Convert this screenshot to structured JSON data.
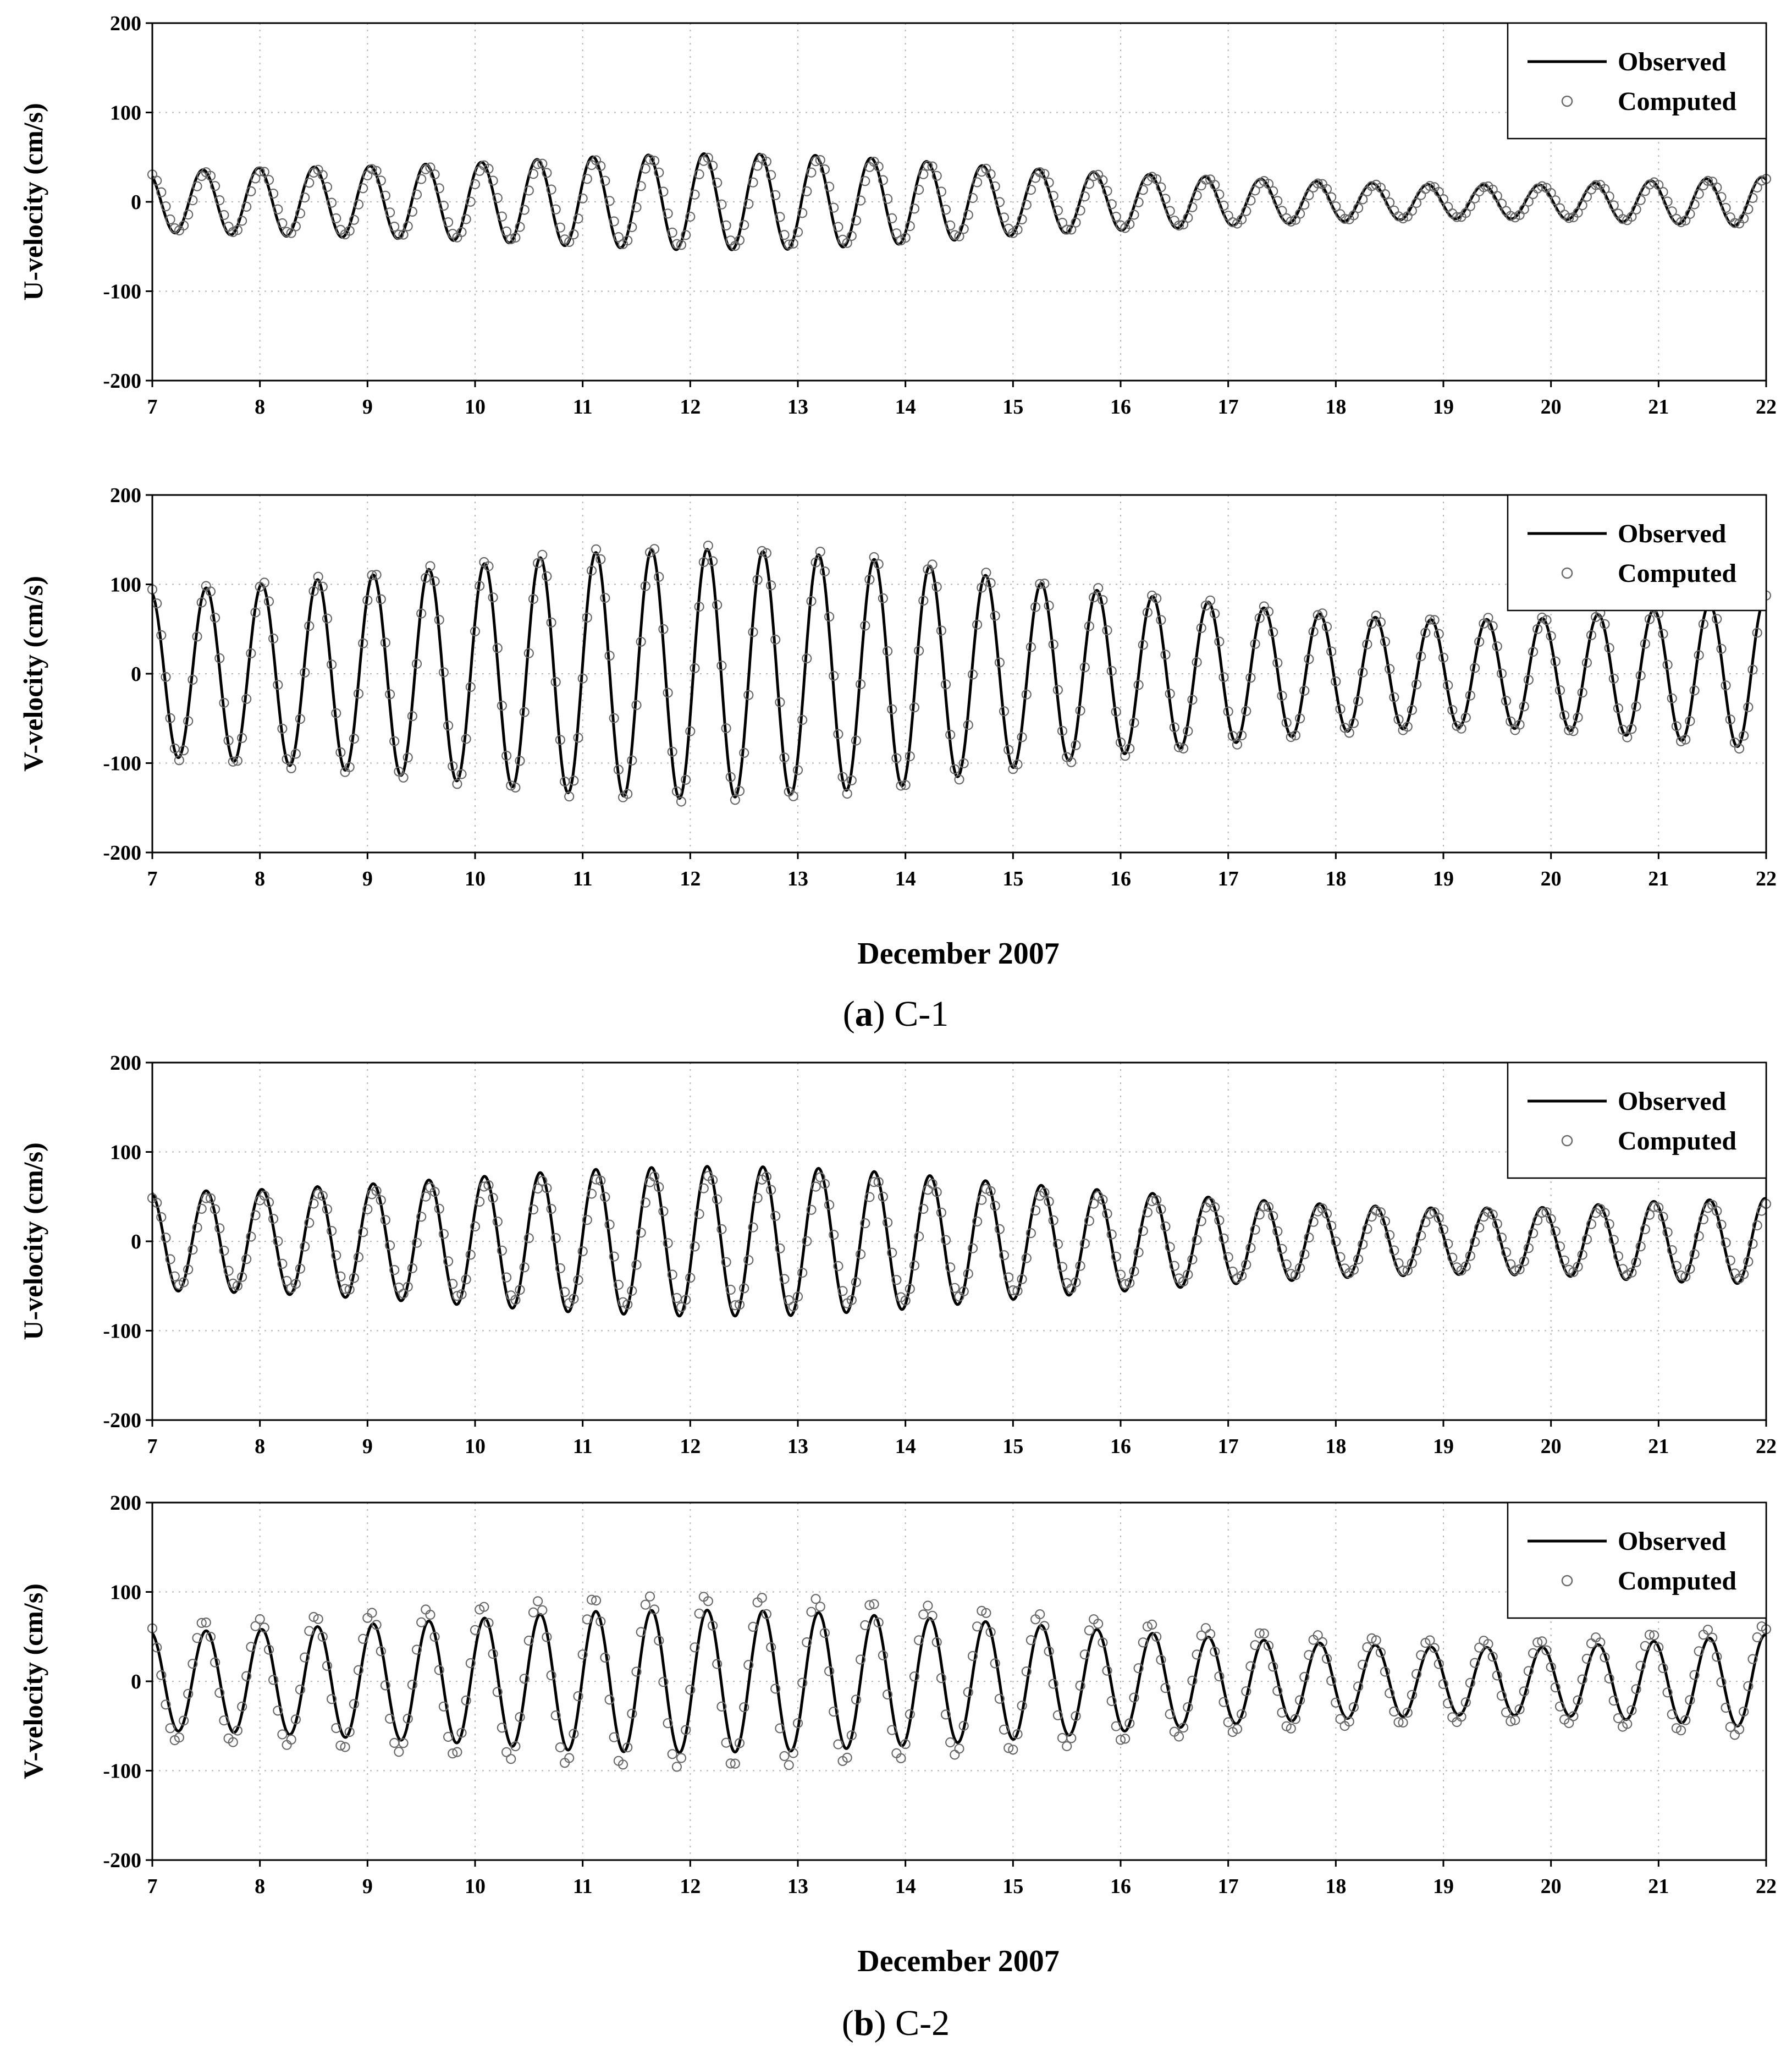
{
  "figure": {
    "group_a": {
      "xlabel": "December 2007",
      "caption": {
        "open": "(",
        "letter": "a",
        "close": ")",
        "name": " C-1"
      }
    },
    "group_b": {
      "xlabel": "December 2007",
      "caption": {
        "open": "(",
        "letter": "b",
        "close": ")",
        "name": " C-2"
      }
    }
  },
  "chart_data": [
    {
      "id": "c1-u",
      "type": "line",
      "ylabel": "U-velocity (cm/s)",
      "xlabel": "",
      "xlim": [
        7,
        22
      ],
      "ylim": [
        -200,
        200
      ],
      "xticks": [
        7,
        8,
        9,
        10,
        11,
        12,
        13,
        14,
        15,
        16,
        17,
        18,
        19,
        20,
        21,
        22
      ],
      "yticks": [
        -200,
        -100,
        0,
        100,
        200
      ],
      "grid": true,
      "legend": "top-right",
      "params": {
        "period_days": 0.5175,
        "first_peak": 7.47,
        "computed_phase_lag_days": 0.03,
        "computed_amp_scale": 0.92
      },
      "amplitude_envelope": {
        "x": [
          7,
          8,
          9,
          10,
          11,
          12,
          13,
          14,
          15,
          16,
          17,
          18,
          19,
          20,
          21,
          22
        ],
        "y": [
          34,
          38,
          40,
          44,
          50,
          54,
          53,
          47,
          38,
          32,
          27,
          22,
          19,
          19,
          24,
          28
        ]
      },
      "series": [
        {
          "name": "Observed",
          "style": "solid line"
        },
        {
          "name": "Computed",
          "style": "open circles"
        }
      ]
    },
    {
      "id": "c1-v",
      "type": "line",
      "ylabel": "V-velocity (cm/s)",
      "xlabel": "",
      "xlim": [
        7,
        22
      ],
      "ylim": [
        -200,
        200
      ],
      "xticks": [
        7,
        8,
        9,
        10,
        11,
        12,
        13,
        14,
        15,
        16,
        17,
        18,
        19,
        20,
        21,
        22
      ],
      "yticks": [
        -200,
        -100,
        0,
        100,
        200
      ],
      "grid": true,
      "legend": "top-right",
      "params": {
        "period_days": 0.5175,
        "first_peak": 7.5,
        "computed_phase_lag_days": 0.01,
        "computed_amp_scale": 1.03
      },
      "amplitude_envelope": {
        "x": [
          7,
          8,
          9,
          10,
          11,
          12,
          13,
          14,
          15,
          16,
          17,
          18,
          19,
          20,
          21,
          22
        ],
        "y": [
          92,
          100,
          110,
          122,
          135,
          140,
          135,
          125,
          105,
          90,
          78,
          65,
          60,
          62,
          72,
          85
        ]
      },
      "series": [
        {
          "name": "Observed",
          "style": "solid line"
        },
        {
          "name": "Computed",
          "style": "open circles"
        }
      ]
    },
    {
      "id": "c2-u",
      "type": "line",
      "ylabel": "U-velocity (cm/s)",
      "xlabel": "",
      "xlim": [
        7,
        22
      ],
      "ylim": [
        -200,
        200
      ],
      "xticks": [
        7,
        8,
        9,
        10,
        11,
        12,
        13,
        14,
        15,
        16,
        17,
        18,
        19,
        20,
        21,
        22
      ],
      "yticks": [
        -200,
        -100,
        0,
        100,
        200
      ],
      "grid": true,
      "legend": "top-right",
      "params": {
        "period_days": 0.5175,
        "first_peak": 7.5,
        "computed_phase_lag_days": 0.02,
        "computed_amp_scale": 0.88
      },
      "amplitude_envelope": {
        "x": [
          7,
          8,
          9,
          10,
          11,
          12,
          13,
          14,
          15,
          16,
          17,
          18,
          19,
          20,
          21,
          22
        ],
        "y": [
          55,
          58,
          64,
          72,
          80,
          84,
          83,
          76,
          65,
          56,
          48,
          41,
          37,
          38,
          45,
          48
        ]
      },
      "series": [
        {
          "name": "Observed",
          "style": "solid line"
        },
        {
          "name": "Computed",
          "style": "open circles"
        }
      ]
    },
    {
      "id": "c2-v",
      "type": "line",
      "ylabel": "V-velocity (cm/s)",
      "xlabel": "",
      "xlim": [
        7,
        22
      ],
      "ylim": [
        -200,
        200
      ],
      "xticks": [
        7,
        8,
        9,
        10,
        11,
        12,
        13,
        14,
        15,
        16,
        17,
        18,
        19,
        20,
        21,
        22
      ],
      "yticks": [
        -200,
        -100,
        0,
        100,
        200
      ],
      "grid": true,
      "legend": "top-right",
      "params": {
        "period_days": 0.5175,
        "first_peak": 7.5,
        "computed_phase_lag_days": -0.02,
        "computed_amp_scale": 1.2
      },
      "amplitude_envelope": {
        "x": [
          7,
          8,
          9,
          10,
          11,
          12,
          13,
          14,
          15,
          16,
          17,
          18,
          19,
          20,
          21,
          22
        ],
        "y": [
          55,
          58,
          64,
          70,
          78,
          80,
          78,
          72,
          65,
          56,
          48,
          42,
          38,
          38,
          45,
          52
        ]
      },
      "series": [
        {
          "name": "Observed",
          "style": "solid line"
        },
        {
          "name": "Computed",
          "style": "open circles"
        }
      ]
    }
  ]
}
